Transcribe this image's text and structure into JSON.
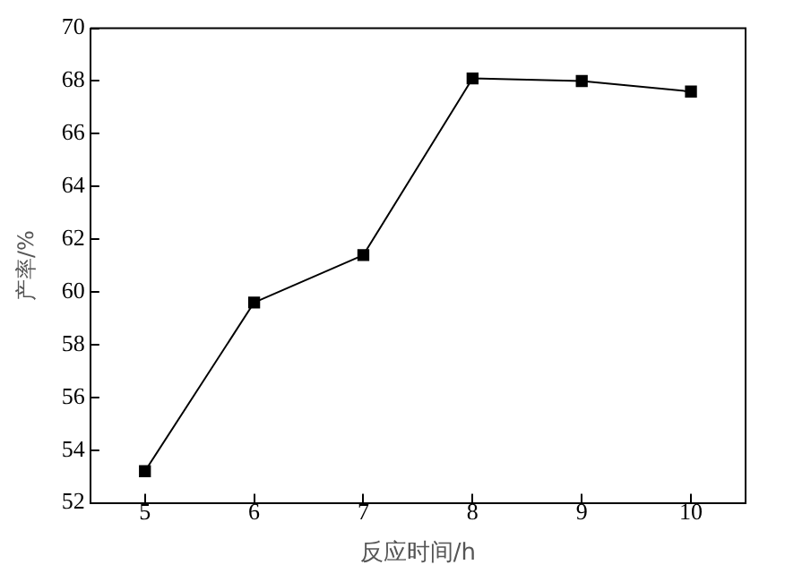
{
  "chart_data": {
    "type": "line",
    "xlabel": "反应时间/h",
    "ylabel": "产率/%",
    "x": [
      5,
      6,
      7,
      8,
      9,
      10
    ],
    "series": [
      {
        "color": "#000000",
        "values": [
          53.2,
          59.6,
          61.4,
          68.1,
          68.0,
          67.6
        ]
      }
    ],
    "xlim": [
      4.5,
      10.5
    ],
    "xticks": [
      5,
      6,
      7,
      8,
      9,
      10
    ],
    "ylim": [
      52,
      70
    ],
    "yticks": [
      52,
      54,
      56,
      58,
      60,
      62,
      64,
      66,
      68,
      70
    ],
    "grid": false,
    "legend": false,
    "marker": "square",
    "line_style": "solid"
  }
}
